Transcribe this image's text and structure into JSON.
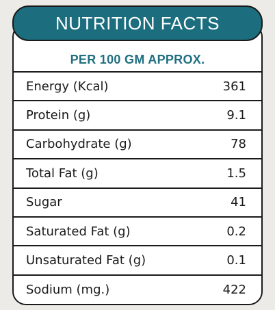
{
  "title": "NUTRITION FACTS",
  "subtitle": "PER 100 GM APPROX.",
  "rows": [
    {
      "label": "Energy (Kcal)",
      "value": "361"
    },
    {
      "label": "Protein (g)",
      "value": "9.1"
    },
    {
      "label": "Carbohydrate (g)",
      "value": "78"
    },
    {
      "label": "Total Fat (g)",
      "value": "1.5"
    },
    {
      "label": "Sugar",
      "value": "41"
    },
    {
      "label": "Saturated Fat (g)",
      "value": "0.2"
    },
    {
      "label": "Unsaturated Fat (g)",
      "value": "0.1"
    },
    {
      "label": "Sodium (mg.)",
      "value": "422"
    }
  ],
  "colors": {
    "banner": "#1c6e7e",
    "subtitle_text": "#1f6f80",
    "border": "#1a1a1a"
  }
}
